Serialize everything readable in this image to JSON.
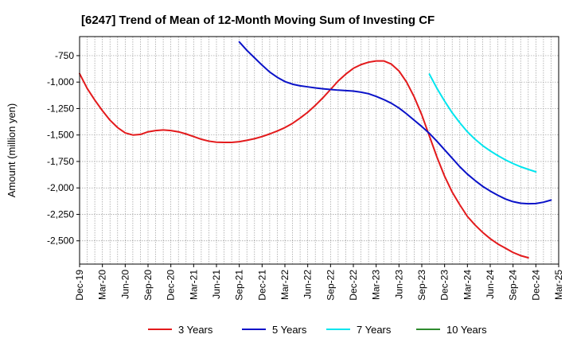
{
  "chart_data": {
    "type": "line",
    "title": "[6247]  Trend of Mean of 12-Month Moving Sum of Investing CF",
    "xlabel": "",
    "ylabel": "Amount (million yen)",
    "ylim": [
      -2720,
      -570
    ],
    "yticks": [
      -750,
      -1000,
      -1250,
      -1500,
      -1750,
      -2000,
      -2250,
      -2500
    ],
    "ytick_labels": [
      "-750",
      "-1,000",
      "-1,250",
      "-1,500",
      "-1,750",
      "-2,000",
      "-2,250",
      "-2,500"
    ],
    "x_categories": [
      "Dec-19",
      "Mar-20",
      "Jun-20",
      "Sep-20",
      "Dec-20",
      "Mar-21",
      "Jun-21",
      "Sep-21",
      "Dec-21",
      "Mar-22",
      "Jun-22",
      "Sep-22",
      "Dec-22",
      "Mar-23",
      "Jun-23",
      "Sep-23",
      "Dec-23",
      "Mar-24",
      "Jun-24",
      "Sep-24",
      "Dec-24",
      "Mar-25"
    ],
    "x_unit": "months since Dec-19",
    "grid": true,
    "legend_position": "bottom",
    "series": [
      {
        "name": "3 Years",
        "color": "#e31a1c",
        "points": [
          [
            0,
            -920
          ],
          [
            1,
            -1060
          ],
          [
            2,
            -1170
          ],
          [
            3,
            -1270
          ],
          [
            4,
            -1360
          ],
          [
            5,
            -1430
          ],
          [
            6,
            -1480
          ],
          [
            7,
            -1500
          ],
          [
            8,
            -1495
          ],
          [
            9,
            -1470
          ],
          [
            10,
            -1458
          ],
          [
            11,
            -1452
          ],
          [
            12,
            -1458
          ],
          [
            13,
            -1470
          ],
          [
            14,
            -1490
          ],
          [
            15,
            -1515
          ],
          [
            16,
            -1540
          ],
          [
            17,
            -1558
          ],
          [
            18,
            -1568
          ],
          [
            19,
            -1570
          ],
          [
            20,
            -1570
          ],
          [
            21,
            -1563
          ],
          [
            22,
            -1550
          ],
          [
            23,
            -1535
          ],
          [
            24,
            -1515
          ],
          [
            25,
            -1490
          ],
          [
            26,
            -1462
          ],
          [
            27,
            -1430
          ],
          [
            28,
            -1390
          ],
          [
            29,
            -1340
          ],
          [
            30,
            -1285
          ],
          [
            31,
            -1220
          ],
          [
            32,
            -1148
          ],
          [
            33,
            -1070
          ],
          [
            34,
            -990
          ],
          [
            35,
            -925
          ],
          [
            36,
            -870
          ],
          [
            37,
            -835
          ],
          [
            38,
            -812
          ],
          [
            39,
            -800
          ],
          [
            40,
            -800
          ],
          [
            41,
            -830
          ],
          [
            42,
            -895
          ],
          [
            43,
            -1000
          ],
          [
            44,
            -1140
          ],
          [
            45,
            -1310
          ],
          [
            46,
            -1510
          ],
          [
            47,
            -1710
          ],
          [
            48,
            -1890
          ],
          [
            49,
            -2040
          ],
          [
            50,
            -2160
          ],
          [
            51,
            -2270
          ],
          [
            52,
            -2350
          ],
          [
            53,
            -2420
          ],
          [
            54,
            -2480
          ],
          [
            55,
            -2530
          ],
          [
            56,
            -2570
          ],
          [
            57,
            -2610
          ],
          [
            58,
            -2640
          ],
          [
            59,
            -2660
          ]
        ]
      },
      {
        "name": "5 Years",
        "color": "#0a12c8",
        "points": [
          [
            21,
            -620
          ],
          [
            22,
            -700
          ],
          [
            23,
            -770
          ],
          [
            24,
            -840
          ],
          [
            25,
            -905
          ],
          [
            26,
            -955
          ],
          [
            27,
            -995
          ],
          [
            28,
            -1020
          ],
          [
            29,
            -1035
          ],
          [
            30,
            -1045
          ],
          [
            31,
            -1055
          ],
          [
            32,
            -1063
          ],
          [
            33,
            -1070
          ],
          [
            34,
            -1076
          ],
          [
            35,
            -1080
          ],
          [
            36,
            -1085
          ],
          [
            37,
            -1095
          ],
          [
            38,
            -1110
          ],
          [
            39,
            -1135
          ],
          [
            40,
            -1165
          ],
          [
            41,
            -1200
          ],
          [
            42,
            -1245
          ],
          [
            43,
            -1300
          ],
          [
            44,
            -1360
          ],
          [
            45,
            -1420
          ],
          [
            46,
            -1485
          ],
          [
            47,
            -1560
          ],
          [
            48,
            -1640
          ],
          [
            49,
            -1720
          ],
          [
            50,
            -1800
          ],
          [
            51,
            -1870
          ],
          [
            52,
            -1930
          ],
          [
            53,
            -1985
          ],
          [
            54,
            -2030
          ],
          [
            55,
            -2070
          ],
          [
            56,
            -2105
          ],
          [
            57,
            -2130
          ],
          [
            58,
            -2145
          ],
          [
            59,
            -2150
          ],
          [
            60,
            -2148
          ],
          [
            61,
            -2135
          ],
          [
            62,
            -2115
          ]
        ]
      },
      {
        "name": "7 Years",
        "color": "#00e5ee",
        "points": [
          [
            46,
            -925
          ],
          [
            47,
            -1060
          ],
          [
            48,
            -1180
          ],
          [
            49,
            -1290
          ],
          [
            50,
            -1385
          ],
          [
            51,
            -1470
          ],
          [
            52,
            -1540
          ],
          [
            53,
            -1600
          ],
          [
            54,
            -1650
          ],
          [
            55,
            -1695
          ],
          [
            56,
            -1735
          ],
          [
            57,
            -1770
          ],
          [
            58,
            -1800
          ],
          [
            59,
            -1825
          ],
          [
            60,
            -1848
          ]
        ]
      },
      {
        "name": "10 Years",
        "color": "#2e8b2e",
        "points": []
      }
    ]
  }
}
